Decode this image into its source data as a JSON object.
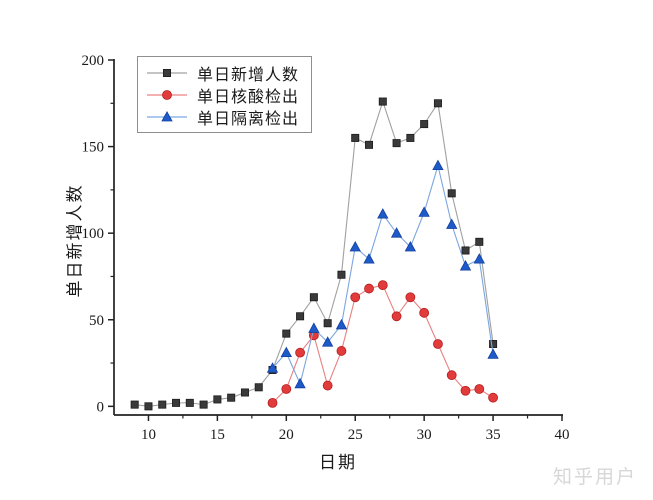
{
  "watermark": "知乎用户",
  "chart_data": {
    "type": "line",
    "title": "",
    "xlabel": "日期",
    "ylabel": "单日新增人数",
    "xlim": [
      7.5,
      40
    ],
    "ylim": [
      -5,
      200
    ],
    "x_major_ticks": [
      10,
      15,
      20,
      25,
      30,
      35,
      40
    ],
    "x_minor_ticks": [
      12.5,
      17.5,
      22.5,
      27.5,
      32.5,
      37.5
    ],
    "y_major_ticks": [
      0,
      50,
      100,
      150,
      200
    ],
    "y_minor_ticks": [
      25,
      75,
      125,
      175
    ],
    "grid": false,
    "legend_position": "top-left",
    "axis_color": "#222222",
    "series": [
      {
        "name": "单日新增人数",
        "marker": "square",
        "marker_color": "#3a3a3a",
        "marker_edge": "#1c1c1c",
        "line_color": "#a0a0a0",
        "x": [
          9,
          10,
          11,
          12,
          13,
          14,
          15,
          16,
          17,
          18,
          19,
          20,
          21,
          22,
          23,
          24,
          25,
          26,
          27,
          28,
          29,
          30,
          31,
          32,
          33,
          34,
          35
        ],
        "y": [
          1,
          0,
          1,
          2,
          2,
          1,
          4,
          5,
          8,
          11,
          21,
          42,
          52,
          63,
          48,
          76,
          155,
          151,
          176,
          152,
          155,
          163,
          175,
          123,
          90,
          95,
          36
        ]
      },
      {
        "name": "单日核酸检出",
        "marker": "circle",
        "marker_color": "#e23b3b",
        "marker_edge": "#b52020",
        "line_color": "#e98080",
        "x": [
          19,
          20,
          21,
          22,
          23,
          24,
          25,
          26,
          27,
          28,
          29,
          30,
          31,
          32,
          33,
          34,
          35
        ],
        "y": [
          2,
          10,
          31,
          41,
          12,
          32,
          63,
          68,
          70,
          52,
          63,
          54,
          36,
          18,
          9,
          10,
          5
        ]
      },
      {
        "name": "单日隔离检出",
        "marker": "triangle",
        "marker_color": "#1e5ac8",
        "marker_edge": "#1340a0",
        "line_color": "#7ba6e0",
        "x": [
          19,
          20,
          21,
          22,
          23,
          24,
          25,
          26,
          27,
          28,
          29,
          30,
          31,
          32,
          33,
          34,
          35
        ],
        "y": [
          22,
          31,
          13,
          45,
          37,
          47,
          92,
          85,
          111,
          100,
          92,
          112,
          139,
          105,
          81,
          85,
          30
        ]
      }
    ]
  }
}
